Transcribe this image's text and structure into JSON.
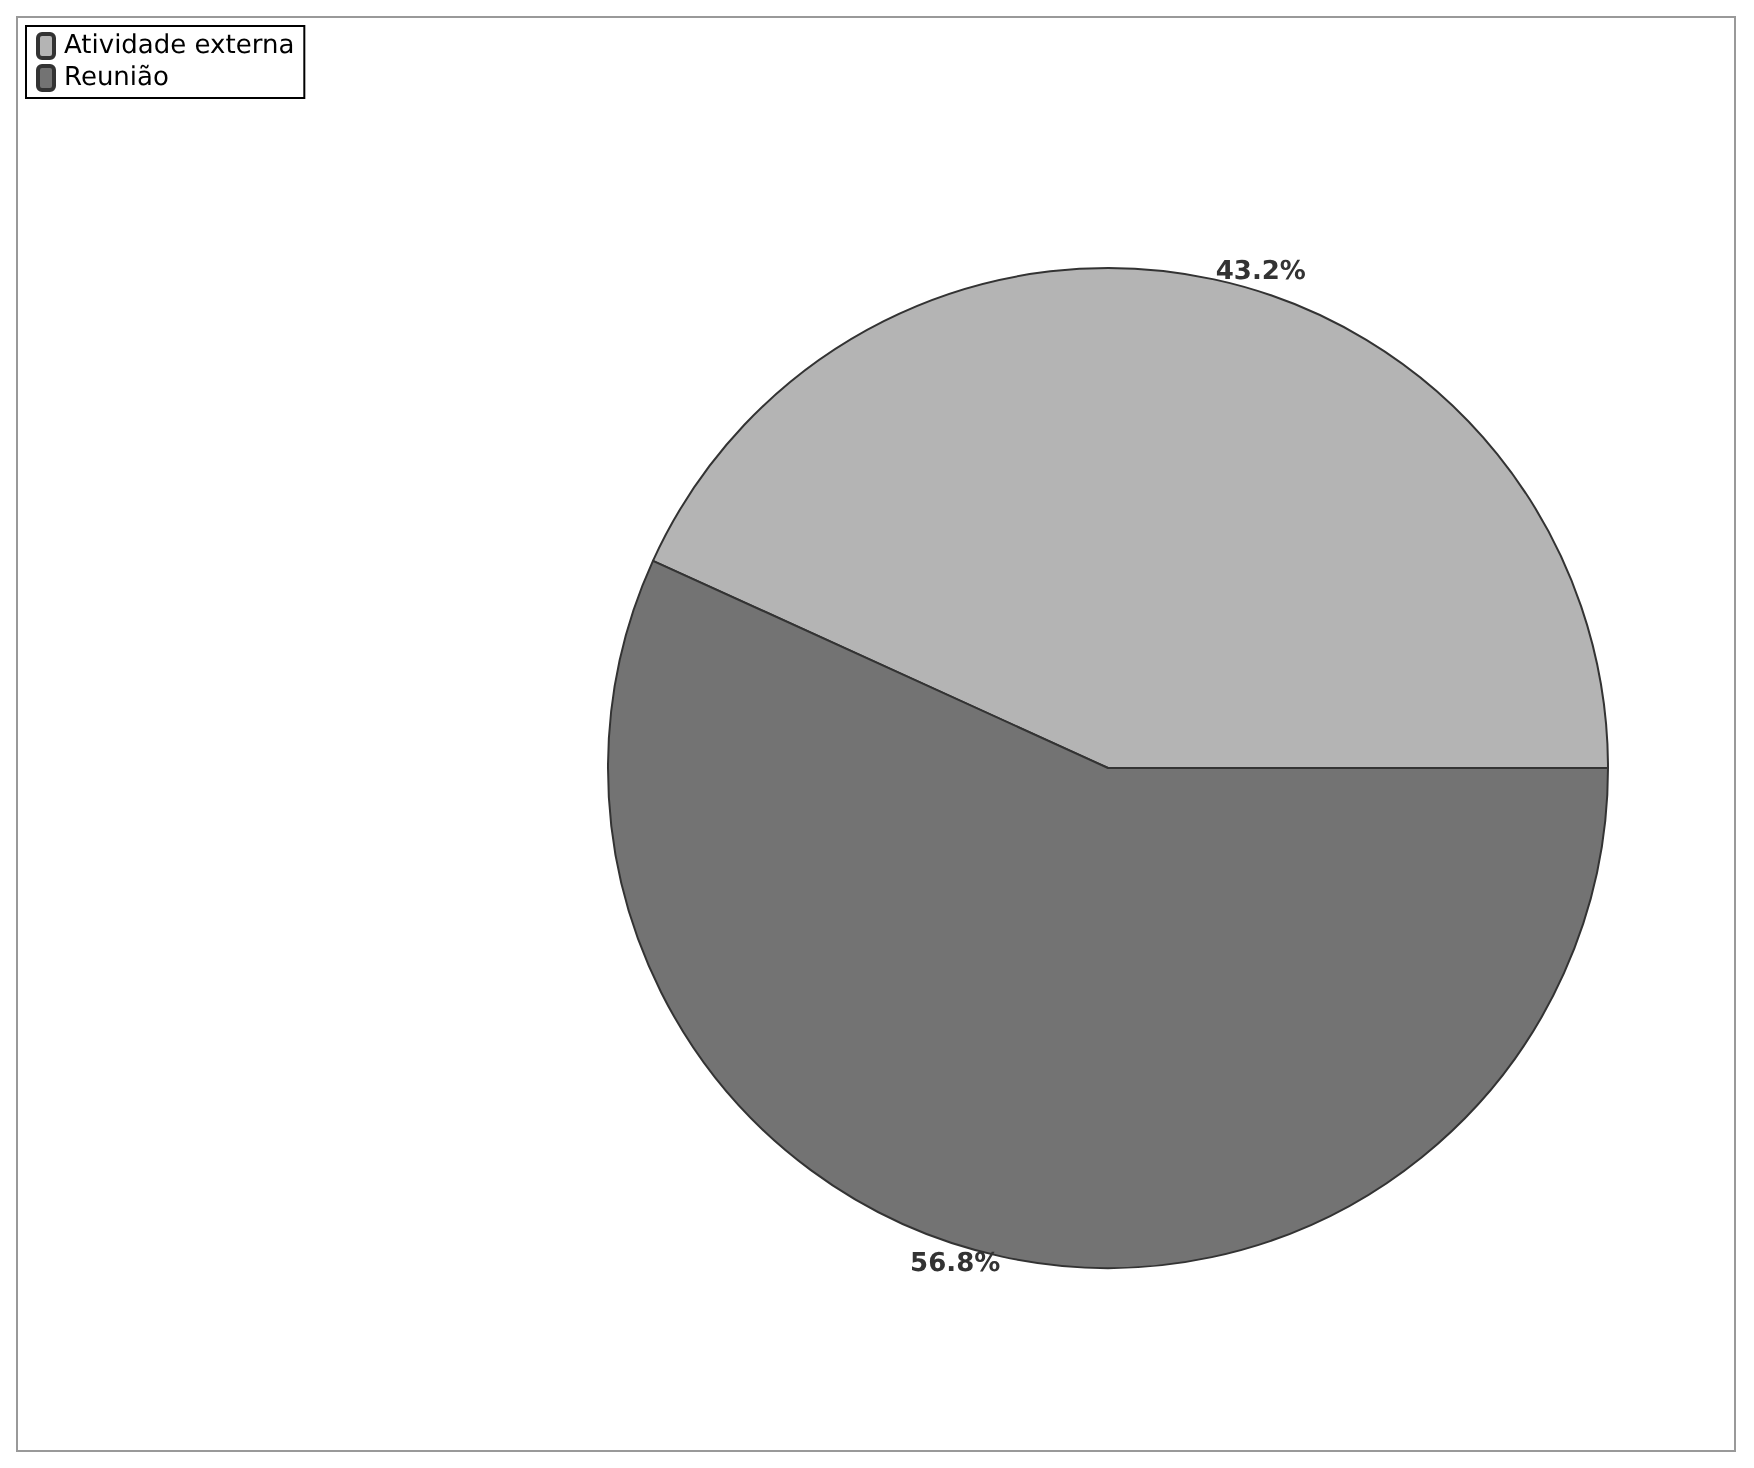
{
  "chart_data": {
    "type": "pie",
    "categories": [
      "Atividade externa",
      "Reunião"
    ],
    "values": [
      43.2,
      56.8
    ],
    "colors": [
      "#b4b4b4",
      "#737373"
    ],
    "value_labels": [
      "43.2%",
      "56.8%"
    ],
    "legend": "top left"
  }
}
